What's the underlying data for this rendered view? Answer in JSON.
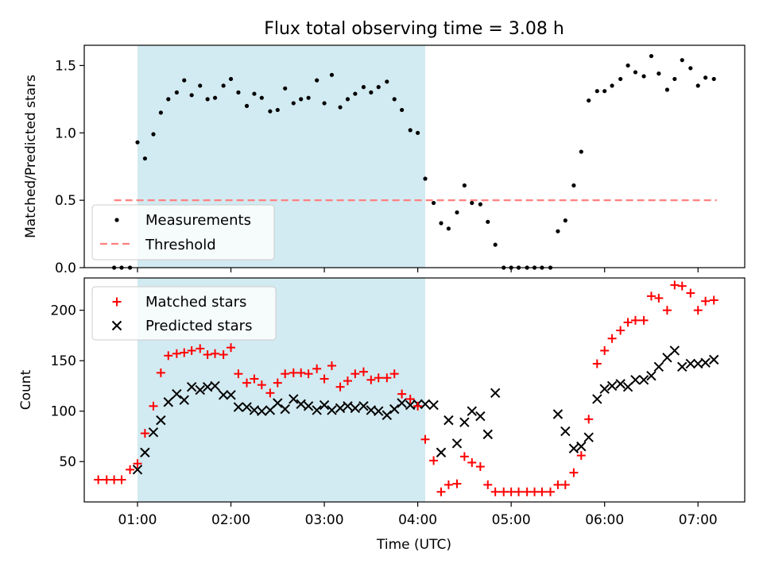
{
  "title": "Flux total observing time = 3.08 h",
  "colors": {
    "shade": "#add8e6",
    "threshold": "#ff8080",
    "measurements": "#000000",
    "matched": "#ff0000",
    "predicted": "#000000"
  },
  "chart_data": [
    {
      "type": "scatter",
      "panel": "top",
      "ylabel": "Matched/Predicted stars",
      "xlim": [
        0.43,
        7.5
      ],
      "ylim": [
        0,
        1.65
      ],
      "yticks": [
        0.0,
        0.5,
        1.0,
        1.5
      ],
      "ytick_labels": [
        "0.0",
        "0.5",
        "1.0",
        "1.5"
      ],
      "shaded_span": [
        1.0,
        4.08
      ],
      "legend_position": "lower-left",
      "threshold": {
        "name": "Threshold",
        "value": 0.5,
        "x_range": [
          0.75,
          7.2
        ]
      },
      "series": [
        {
          "name": "Measurements",
          "marker": "dot",
          "x": [
            0.75,
            0.83,
            0.92,
            1.0,
            1.08,
            1.17,
            1.25,
            1.33,
            1.42,
            1.5,
            1.58,
            1.67,
            1.75,
            1.83,
            1.92,
            2.0,
            2.08,
            2.17,
            2.25,
            2.33,
            2.42,
            2.5,
            2.58,
            2.67,
            2.75,
            2.83,
            2.92,
            3.0,
            3.08,
            3.17,
            3.25,
            3.33,
            3.42,
            3.5,
            3.58,
            3.67,
            3.75,
            3.83,
            3.92,
            4.0,
            4.08,
            4.17,
            4.25,
            4.33,
            4.42,
            4.5,
            4.58,
            4.67,
            4.75,
            4.83,
            4.92,
            5.0,
            5.08,
            5.17,
            5.25,
            5.33,
            5.42,
            5.5,
            5.58,
            5.67,
            5.75,
            5.83,
            5.92,
            6.0,
            6.08,
            6.17,
            6.25,
            6.33,
            6.42,
            6.5,
            6.58,
            6.67,
            6.75,
            6.83,
            6.92,
            7.0,
            7.08,
            7.17
          ],
          "y": [
            0.0,
            0.0,
            0.0,
            0.93,
            0.81,
            0.99,
            1.15,
            1.25,
            1.3,
            1.39,
            1.28,
            1.35,
            1.25,
            1.26,
            1.35,
            1.4,
            1.3,
            1.2,
            1.29,
            1.26,
            1.16,
            1.17,
            1.33,
            1.22,
            1.25,
            1.26,
            1.39,
            1.22,
            1.43,
            1.19,
            1.25,
            1.29,
            1.34,
            1.3,
            1.34,
            1.38,
            1.25,
            1.17,
            1.02,
            1.0,
            0.66,
            0.48,
            0.33,
            0.29,
            0.41,
            0.61,
            0.48,
            0.47,
            0.34,
            0.17,
            0.0,
            0.0,
            0.0,
            0.0,
            0.0,
            0.0,
            0.0,
            0.27,
            0.35,
            0.61,
            0.86,
            1.24,
            1.31,
            1.31,
            1.35,
            1.4,
            1.5,
            1.45,
            1.42,
            1.57,
            1.44,
            1.32,
            1.4,
            1.54,
            1.48,
            1.35,
            1.41,
            1.4
          ]
        }
      ]
    },
    {
      "type": "scatter",
      "panel": "bottom",
      "xlabel": "Time (UTC)",
      "ylabel": "Count",
      "xlim": [
        0.43,
        7.5
      ],
      "ylim": [
        10,
        232
      ],
      "xticks": [
        1,
        2,
        3,
        4,
        5,
        6,
        7
      ],
      "xtick_labels": [
        "01:00",
        "02:00",
        "03:00",
        "04:00",
        "05:00",
        "06:00",
        "07:00"
      ],
      "yticks": [
        50,
        100,
        150,
        200
      ],
      "ytick_labels": [
        "50",
        "100",
        "150",
        "200"
      ],
      "shaded_span": [
        1.0,
        4.08
      ],
      "legend_position": "upper-left",
      "series": [
        {
          "name": "Matched stars",
          "marker": "plus",
          "x": [
            0.58,
            0.67,
            0.75,
            0.83,
            0.92,
            1.0,
            1.08,
            1.17,
            1.25,
            1.33,
            1.42,
            1.5,
            1.58,
            1.67,
            1.75,
            1.83,
            1.92,
            2.0,
            2.08,
            2.17,
            2.25,
            2.33,
            2.42,
            2.5,
            2.58,
            2.67,
            2.75,
            2.83,
            2.92,
            3.0,
            3.08,
            3.17,
            3.25,
            3.33,
            3.42,
            3.5,
            3.58,
            3.67,
            3.75,
            3.83,
            3.92,
            4.0,
            4.08,
            4.17,
            4.25,
            4.33,
            4.42,
            4.5,
            4.58,
            4.67,
            4.75,
            4.83,
            4.92,
            5.0,
            5.08,
            5.17,
            5.25,
            5.33,
            5.42,
            5.5,
            5.58,
            5.67,
            5.75,
            5.83,
            5.92,
            6.0,
            6.08,
            6.17,
            6.25,
            6.33,
            6.42,
            6.5,
            6.58,
            6.67,
            6.75,
            6.83,
            6.92,
            7.0,
            7.08,
            7.17
          ],
          "y": [
            32,
            32,
            32,
            32,
            42,
            48,
            78,
            105,
            138,
            155,
            157,
            158,
            160,
            162,
            156,
            157,
            156,
            163,
            137,
            128,
            132,
            126,
            118,
            128,
            137,
            138,
            138,
            137,
            142,
            132,
            145,
            124,
            130,
            137,
            139,
            131,
            133,
            133,
            137,
            117,
            112,
            105,
            72,
            51,
            20,
            27,
            28,
            55,
            49,
            45,
            27,
            20,
            20,
            20,
            20,
            20,
            20,
            20,
            20,
            27,
            27,
            39,
            56,
            92,
            147,
            160,
            172,
            180,
            188,
            190,
            190,
            214,
            212,
            200,
            225,
            224,
            217,
            200,
            209,
            210
          ]
        },
        {
          "name": "Predicted stars",
          "marker": "x",
          "x": [
            1.0,
            1.08,
            1.17,
            1.25,
            1.33,
            1.42,
            1.5,
            1.58,
            1.67,
            1.75,
            1.83,
            1.92,
            2.0,
            2.08,
            2.17,
            2.25,
            2.33,
            2.42,
            2.5,
            2.58,
            2.67,
            2.75,
            2.83,
            2.92,
            3.0,
            3.08,
            3.17,
            3.25,
            3.33,
            3.42,
            3.5,
            3.58,
            3.67,
            3.75,
            3.83,
            3.92,
            4.0,
            4.08,
            4.17,
            4.25,
            4.33,
            4.42,
            4.5,
            4.58,
            4.67,
            4.75,
            4.83,
            5.5,
            5.58,
            5.67,
            5.75,
            5.83,
            5.92,
            6.0,
            6.08,
            6.17,
            6.25,
            6.33,
            6.42,
            6.5,
            6.58,
            6.67,
            6.75,
            6.83,
            6.92,
            7.0,
            7.08,
            7.17
          ],
          "y": [
            42,
            59,
            79,
            91,
            109,
            117,
            111,
            124,
            121,
            124,
            125,
            116,
            116,
            104,
            104,
            101,
            100,
            101,
            108,
            102,
            112,
            107,
            105,
            101,
            106,
            101,
            103,
            105,
            103,
            105,
            101,
            100,
            96,
            102,
            108,
            106,
            107,
            107,
            106,
            59,
            91,
            68,
            89,
            100,
            95,
            77,
            118,
            97,
            80,
            63,
            65,
            74,
            112,
            122,
            125,
            127,
            124,
            131,
            131,
            135,
            144,
            153,
            160,
            144,
            147,
            147,
            148,
            151
          ]
        }
      ]
    }
  ]
}
